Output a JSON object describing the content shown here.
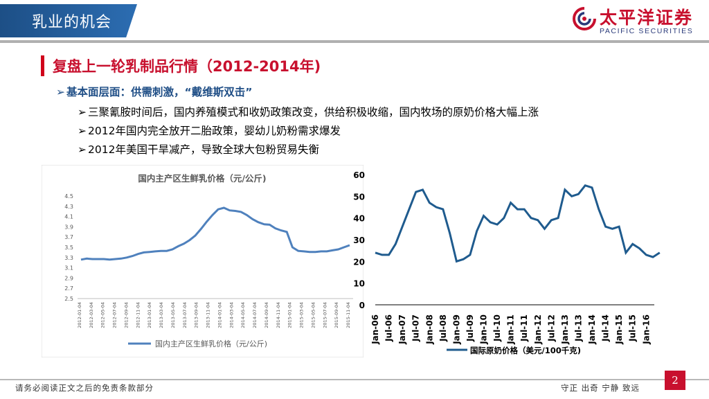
{
  "header": {
    "section": "乳业的机会",
    "logo_cn": "太平洋证券",
    "logo_en": "PACIFIC SECURITIES"
  },
  "page_title": "复盘上一轮乳制品行情（2012-2014年)",
  "bullets": {
    "main": "基本面层面：供需刺激，“戴维斯双击”",
    "subs": [
      "三聚氰胺时间后，国内养殖模式和收奶政策改变，供给积极收缩，国内牧场的原奶价格大幅上涨",
      "2012年国内完全放开二胎政策，婴幼儿奶粉需求爆发",
      "2012年美国干旱减产，导致全球大包粉贸易失衡"
    ]
  },
  "footer": {
    "left": "请务必阅读正文之后的免责条款部分",
    "right": "守正  出奇  宁静  致远",
    "page": "2"
  },
  "colors": {
    "brand_red": "#c8102e",
    "brand_blue": "#1f4e86",
    "series_left": "#4f81bd",
    "series_right": "#1f5b8e"
  },
  "chart_data": [
    {
      "type": "line",
      "title": "国内主产区生鲜乳价格（元/公斤)",
      "ylim": [
        2.5,
        4.5
      ],
      "yticks": [
        "2.5",
        "2.7",
        "2.9",
        "3.1",
        "3.3",
        "3.5",
        "3.7",
        "3.9",
        "4.1",
        "4.3",
        "4.5"
      ],
      "xticks": [
        "2012-01-04",
        "2012-03-04",
        "2012-05-04",
        "2012-07-04",
        "2012-09-04",
        "2012-11-04",
        "2013-01-04",
        "2013-03-04",
        "2013-05-04",
        "2013-07-04",
        "2013-09-04",
        "2013-11-04",
        "2014-01-04",
        "2014-03-04",
        "2014-05-04",
        "2014-07-04",
        "2014-09-04",
        "2014-11-04",
        "2015-01-04",
        "2015-03-04",
        "2015-05-04",
        "2015-07-04",
        "2015-09-04",
        "2015-11-04"
      ],
      "legend": "国内主产区生鲜乳价格（元/公斤)",
      "legend_position": "bottom",
      "series": [
        {
          "name": "国内主产区生鲜乳价格（元/公斤)",
          "x": [
            "2012-01",
            "2012-02",
            "2012-03",
            "2012-04",
            "2012-05",
            "2012-06",
            "2012-07",
            "2012-08",
            "2012-09",
            "2012-10",
            "2012-11",
            "2012-12",
            "2013-01",
            "2013-02",
            "2013-03",
            "2013-04",
            "2013-05",
            "2013-06",
            "2013-07",
            "2013-08",
            "2013-09",
            "2013-10",
            "2013-11",
            "2013-12",
            "2014-01",
            "2014-02",
            "2014-03",
            "2014-04",
            "2014-05",
            "2014-06",
            "2014-07",
            "2014-08",
            "2014-09",
            "2014-10",
            "2014-11",
            "2014-12",
            "2015-01",
            "2015-02",
            "2015-03",
            "2015-04",
            "2015-05",
            "2015-06",
            "2015-07",
            "2015-08",
            "2015-09",
            "2015-10",
            "2015-11",
            "2015-12"
          ],
          "values": [
            3.26,
            3.28,
            3.27,
            3.27,
            3.27,
            3.26,
            3.27,
            3.28,
            3.3,
            3.33,
            3.37,
            3.4,
            3.41,
            3.42,
            3.43,
            3.43,
            3.46,
            3.52,
            3.57,
            3.64,
            3.73,
            3.86,
            4.0,
            4.13,
            4.24,
            4.27,
            4.22,
            4.21,
            4.19,
            4.13,
            4.05,
            3.99,
            3.95,
            3.94,
            3.87,
            3.83,
            3.8,
            3.5,
            3.43,
            3.42,
            3.41,
            3.41,
            3.42,
            3.42,
            3.44,
            3.46,
            3.5,
            3.54
          ]
        }
      ]
    },
    {
      "type": "line",
      "title": "",
      "ylim": [
        0,
        60
      ],
      "yticks": [
        "0",
        "10",
        "20",
        "30",
        "40",
        "50",
        "60"
      ],
      "xticks": [
        "Jan-06",
        "Jul-06",
        "Jan-07",
        "Jul-07",
        "Jan-08",
        "Jul-08",
        "Jan-09",
        "Jul-09",
        "Jan-10",
        "Jul-10",
        "Jan-11",
        "Jul-11",
        "Jan-12",
        "Jul-12",
        "Jan-13",
        "Jul-13",
        "Jan-14",
        "Jul-14",
        "Jan-15",
        "Jul-15",
        "Jan-16"
      ],
      "legend": "国际原奶价格（美元/100千克)",
      "legend_position": "bottom",
      "series": [
        {
          "name": "国际原奶价格（美元/100千克)",
          "x": [
            "Jan-06",
            "Apr-06",
            "Jul-06",
            "Oct-06",
            "Jan-07",
            "Apr-07",
            "Jul-07",
            "Oct-07",
            "Jan-08",
            "Apr-08",
            "Jul-08",
            "Oct-08",
            "Jan-09",
            "Apr-09",
            "Jul-09",
            "Oct-09",
            "Jan-10",
            "Apr-10",
            "Jul-10",
            "Oct-10",
            "Jan-11",
            "Apr-11",
            "Jul-11",
            "Oct-11",
            "Jan-12",
            "Apr-12",
            "Jul-12",
            "Oct-12",
            "Jan-13",
            "Apr-13",
            "Jul-13",
            "Oct-13",
            "Jan-14",
            "Apr-14",
            "Jul-14",
            "Oct-14",
            "Jan-15",
            "Apr-15",
            "Jul-15",
            "Oct-15",
            "Jan-16",
            "Apr-16",
            "May-16"
          ],
          "values": [
            24,
            23,
            23,
            28,
            36,
            44,
            52,
            53,
            47,
            45,
            44,
            33,
            20,
            21,
            23,
            34,
            41,
            38,
            37,
            40,
            47,
            44,
            44,
            40,
            39,
            35,
            39,
            40,
            53,
            50,
            51,
            55,
            54,
            44,
            36,
            35,
            36,
            24,
            28,
            26,
            23,
            22,
            24
          ]
        }
      ]
    }
  ]
}
